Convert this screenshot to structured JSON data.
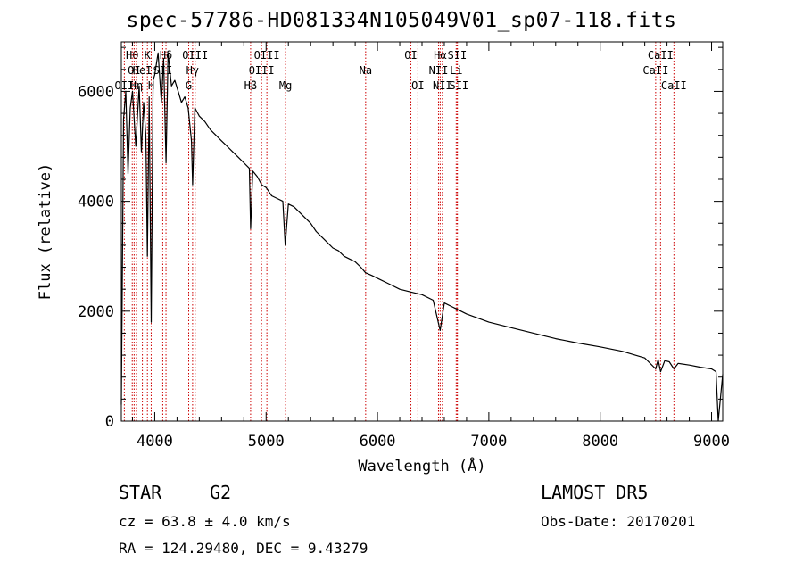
{
  "header": {
    "title": "spec-57786-HD081334N105049V01_sp07-118.fits"
  },
  "info": {
    "object_class": "STAR",
    "subclass": "G2",
    "survey": "LAMOST DR5",
    "redshift": "cz = 63.8 ± 4.0 km/s",
    "obs_date": "Obs-Date: 20170201",
    "coordinates": "RA = 124.29480, DEC =   9.43279"
  },
  "colors": {
    "spectrum": "#000000",
    "line_marker": "#cc0000",
    "axes": "#000000",
    "background": "#ffffff"
  },
  "chart_data": {
    "type": "line",
    "title": "spec-57786-HD081334N105049V01_sp07-118.fits",
    "xlabel": "Wavelength (Å)",
    "ylabel": "Flux (relative)",
    "xlim": [
      3700,
      9100
    ],
    "ylim": [
      0,
      6900
    ],
    "x_ticks": [
      4000,
      5000,
      6000,
      7000,
      8000,
      9000
    ],
    "y_ticks": [
      0,
      2000,
      4000,
      6000
    ],
    "grid": false,
    "series": [
      {
        "x": [
          3700,
          3720,
          3740,
          3760,
          3780,
          3800,
          3830,
          3860,
          3880,
          3900,
          3920,
          3934,
          3950,
          3968,
          3985,
          4000,
          4030,
          4060,
          4080,
          4101,
          4120,
          4150,
          4180,
          4210,
          4240,
          4270,
          4300,
          4330,
          4340,
          4360,
          4400,
          4450,
          4500,
          4550,
          4600,
          4650,
          4700,
          4750,
          4800,
          4850,
          4861,
          4880,
          4920,
          4960,
          5000,
          5050,
          5100,
          5150,
          5172,
          5200,
          5250,
          5300,
          5350,
          5400,
          5450,
          5500,
          5550,
          5600,
          5650,
          5700,
          5750,
          5800,
          5850,
          5893,
          5950,
          6000,
          6100,
          6200,
          6300,
          6400,
          6500,
          6563,
          6600,
          6700,
          6800,
          7000,
          7200,
          7400,
          7600,
          7800,
          8000,
          8200,
          8400,
          8498,
          8520,
          8542,
          8580,
          8620,
          8662,
          8700,
          8800,
          8900,
          9000,
          9040,
          9060,
          9100
        ],
        "y": [
          300,
          5500,
          6000,
          4500,
          5700,
          6000,
          5000,
          6100,
          4900,
          5800,
          5200,
          3000,
          5900,
          1800,
          6200,
          6300,
          6700,
          5800,
          6600,
          4700,
          6700,
          6100,
          6200,
          6000,
          5800,
          5900,
          5700,
          5100,
          4300,
          5700,
          5550,
          5450,
          5300,
          5200,
          5100,
          5000,
          4900,
          4800,
          4700,
          4600,
          3500,
          4550,
          4450,
          4300,
          4250,
          4100,
          4050,
          4000,
          3200,
          3950,
          3900,
          3800,
          3700,
          3600,
          3450,
          3350,
          3250,
          3150,
          3100,
          3000,
          2950,
          2900,
          2800,
          2700,
          2650,
          2600,
          2500,
          2400,
          2350,
          2300,
          2200,
          1650,
          2150,
          2050,
          1950,
          1800,
          1700,
          1600,
          1500,
          1420,
          1350,
          1270,
          1150,
          950,
          1120,
          900,
          1100,
          1080,
          950,
          1050,
          1020,
          980,
          950,
          900,
          0,
          850
        ]
      }
    ],
    "line_markers": [
      {
        "label": "OII",
        "wavelength": 3727,
        "row": 3
      },
      {
        "label": "Hθ",
        "wavelength": 3798,
        "row": 1
      },
      {
        "label": "OI",
        "wavelength": 3815,
        "row": 2
      },
      {
        "label": "Hη",
        "wavelength": 3836,
        "row": 3
      },
      {
        "label": "HeI",
        "wavelength": 3889,
        "row": 2
      },
      {
        "label": "K",
        "wavelength": 3934,
        "row": 1
      },
      {
        "label": "H",
        "wavelength": 3968,
        "row": 3
      },
      {
        "label": "SII",
        "wavelength": 4072,
        "row": 2
      },
      {
        "label": "Hδ",
        "wavelength": 4101,
        "row": 1
      },
      {
        "label": "G",
        "wavelength": 4305,
        "row": 3
      },
      {
        "label": "Hγ",
        "wavelength": 4340,
        "row": 2
      },
      {
        "label": "OIII",
        "wavelength": 4363,
        "row": 1
      },
      {
        "label": "Hβ",
        "wavelength": 4861,
        "row": 3
      },
      {
        "label": "OIII",
        "wavelength": 4959,
        "row": 2
      },
      {
        "label": "OIII",
        "wavelength": 5007,
        "row": 1
      },
      {
        "label": "Mg",
        "wavelength": 5175,
        "row": 3
      },
      {
        "label": "Na",
        "wavelength": 5894,
        "row": 2
      },
      {
        "label": "OI",
        "wavelength": 6300,
        "row": 1
      },
      {
        "label": "OI",
        "wavelength": 6363,
        "row": 3
      },
      {
        "label": "NII",
        "wavelength": 6548,
        "row": 2
      },
      {
        "label": "Hα",
        "wavelength": 6563,
        "row": 1
      },
      {
        "label": "NII",
        "wavelength": 6583,
        "row": 3
      },
      {
        "label": "Li",
        "wavelength": 6707,
        "row": 2
      },
      {
        "label": "SII",
        "wavelength": 6716,
        "row": 1
      },
      {
        "label": "SII",
        "wavelength": 6731,
        "row": 3
      },
      {
        "label": "CaII",
        "wavelength": 8498,
        "row": 2
      },
      {
        "label": "CaII",
        "wavelength": 8542,
        "row": 1
      },
      {
        "label": "CaII",
        "wavelength": 8662,
        "row": 3
      }
    ]
  }
}
